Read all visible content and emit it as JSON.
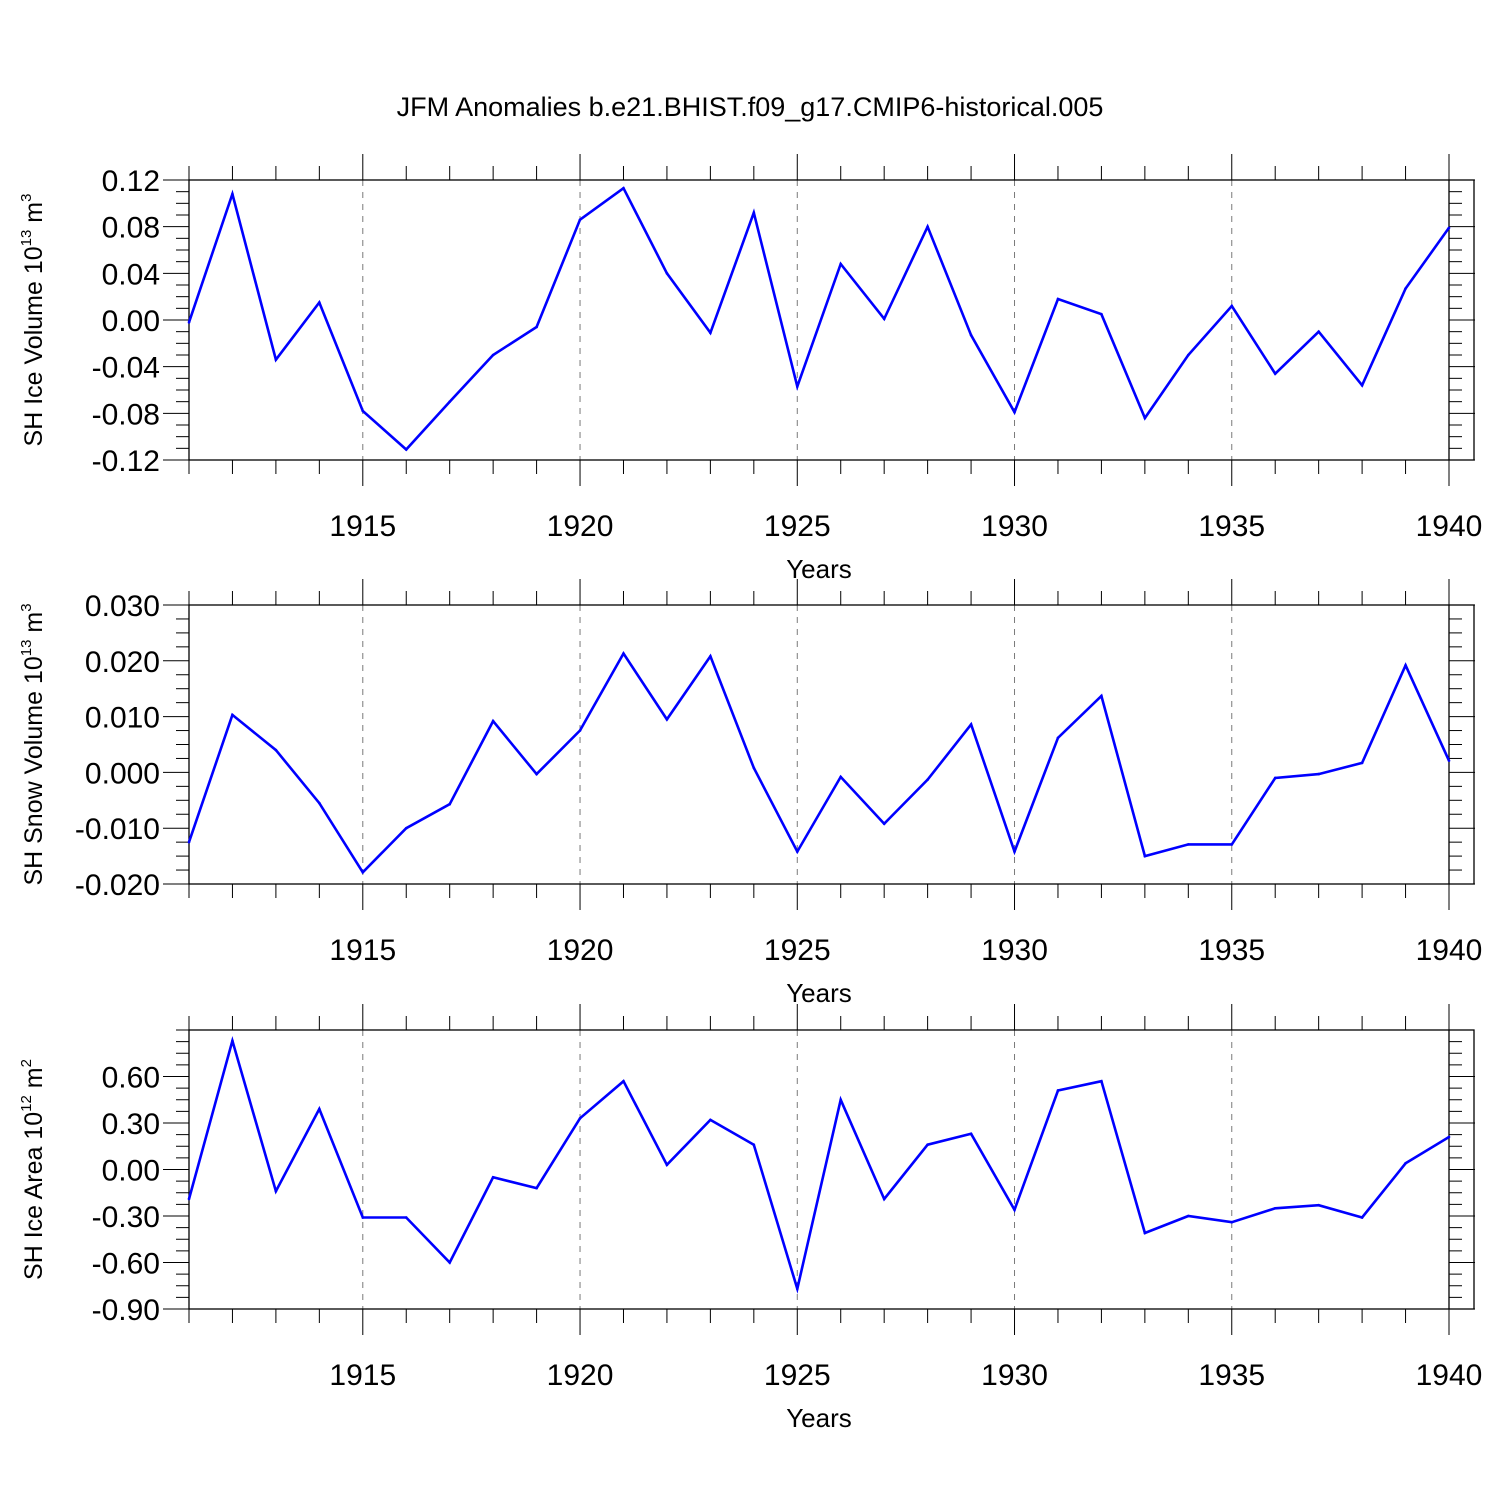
{
  "title": "JFM Anomalies b.e21.BHIST.f09_g17.CMIP6-historical.005",
  "colors": {
    "series": "#0000ff",
    "axes": "#000000",
    "grid": "#7a7a7a"
  },
  "chart_data": [
    {
      "type": "line",
      "title": "JFM Anomalies b.e21.BHIST.f09_g17.CMIP6-historical.005",
      "xlabel": "Years",
      "ylabel": {
        "text": "SH Ice Volume 10",
        "exponent": "13",
        "unit": "m",
        "unit_exponent": "3"
      },
      "xlim": [
        1911,
        1940
      ],
      "ylim": [
        -0.12,
        0.12
      ],
      "xticks": [
        "1915",
        "1920",
        "1925",
        "1930",
        "1935",
        "1940"
      ],
      "yticks": [
        "0.12",
        "0.08",
        "0.04",
        "0.00",
        "-0.04",
        "-0.08",
        "-0.12"
      ],
      "ytick_values": [
        0.12,
        0.08,
        0.04,
        0.0,
        -0.04,
        -0.08,
        -0.12
      ],
      "grid": "vertical dashed at major x ticks",
      "x": [
        1911,
        1912,
        1913,
        1914,
        1915,
        1916,
        1917,
        1918,
        1919,
        1920,
        1921,
        1922,
        1923,
        1924,
        1925,
        1926,
        1927,
        1928,
        1929,
        1930,
        1931,
        1932,
        1933,
        1934,
        1935,
        1936,
        1937,
        1938,
        1939,
        1940
      ],
      "values": [
        -0.002,
        0.108,
        -0.034,
        0.015,
        -0.078,
        -0.111,
        -0.07,
        -0.03,
        -0.006,
        0.086,
        0.113,
        0.04,
        -0.011,
        0.092,
        -0.057,
        0.048,
        0.001,
        0.08,
        -0.013,
        -0.079,
        0.018,
        0.005,
        -0.084,
        -0.03,
        0.012,
        -0.046,
        -0.01,
        -0.056,
        0.027,
        0.079
      ]
    },
    {
      "type": "line",
      "xlabel": "Years",
      "ylabel": {
        "text": "SH Snow Volume 10",
        "exponent": "13",
        "unit": "m",
        "unit_exponent": "3"
      },
      "xlim": [
        1911,
        1940
      ],
      "ylim": [
        -0.02,
        0.03
      ],
      "xticks": [
        "1915",
        "1920",
        "1925",
        "1930",
        "1935",
        "1940"
      ],
      "yticks": [
        "0.030",
        "0.020",
        "0.010",
        "0.000",
        "-0.010",
        "-0.020"
      ],
      "ytick_values": [
        0.03,
        0.02,
        0.01,
        0.0,
        -0.01,
        -0.02
      ],
      "grid": "vertical dashed at major x ticks",
      "x": [
        1911,
        1912,
        1913,
        1914,
        1915,
        1916,
        1917,
        1918,
        1919,
        1920,
        1921,
        1922,
        1923,
        1924,
        1925,
        1926,
        1927,
        1928,
        1929,
        1930,
        1931,
        1932,
        1933,
        1934,
        1935,
        1936,
        1937,
        1938,
        1939,
        1940
      ],
      "values": [
        -0.0125,
        0.0103,
        0.004,
        -0.0055,
        -0.0179,
        -0.01,
        -0.0057,
        0.0092,
        -0.0003,
        0.0075,
        0.0213,
        0.0095,
        0.0208,
        0.0008,
        -0.0142,
        -0.0008,
        -0.0092,
        -0.0013,
        0.0086,
        -0.0142,
        0.0062,
        0.0137,
        -0.015,
        -0.0129,
        -0.0129,
        -0.001,
        -0.0003,
        0.0017,
        0.0192,
        0.0021
      ]
    },
    {
      "type": "line",
      "xlabel": "Years",
      "ylabel": {
        "text": "SH Ice Area 10",
        "exponent": "12",
        "unit": "m",
        "unit_exponent": "2"
      },
      "xlim": [
        1911,
        1940
      ],
      "ylim": [
        -0.9,
        0.9
      ],
      "xticks": [
        "1915",
        "1920",
        "1925",
        "1930",
        "1935",
        "1940"
      ],
      "yticks": [
        "0.60",
        "0.30",
        "0.00",
        "-0.30",
        "-0.60",
        "-0.90"
      ],
      "ytick_values": [
        0.6,
        0.3,
        0.0,
        -0.3,
        -0.6,
        -0.9
      ],
      "grid": "vertical dashed at major x ticks",
      "x": [
        1911,
        1912,
        1913,
        1914,
        1915,
        1916,
        1917,
        1918,
        1919,
        1920,
        1921,
        1922,
        1923,
        1924,
        1925,
        1926,
        1927,
        1928,
        1929,
        1930,
        1931,
        1932,
        1933,
        1934,
        1935,
        1936,
        1937,
        1938,
        1939,
        1940
      ],
      "values": [
        -0.19,
        0.83,
        -0.14,
        0.39,
        -0.31,
        -0.31,
        -0.6,
        -0.05,
        -0.12,
        0.33,
        0.57,
        0.03,
        0.32,
        0.16,
        -0.77,
        0.45,
        -0.19,
        0.16,
        0.23,
        -0.26,
        0.51,
        0.57,
        -0.41,
        -0.3,
        -0.34,
        -0.25,
        -0.23,
        -0.31,
        0.04,
        0.21
      ]
    }
  ]
}
